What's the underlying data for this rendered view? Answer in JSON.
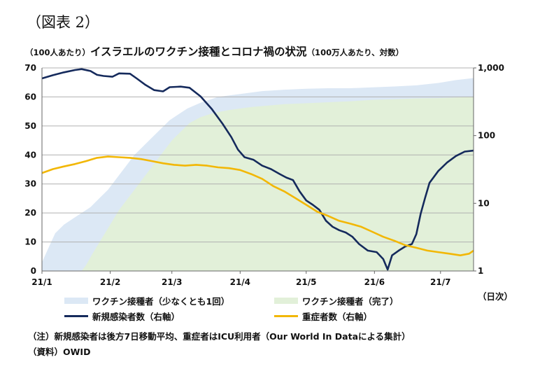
{
  "figure_label": "（図表 2）",
  "title": {
    "left_unit": "（100人あたり）",
    "main": "イスラエルのワクチン接種とコロナ禍の状況",
    "right_unit": "（100万人あたり、対数）"
  },
  "x_unit_label": "（日次）",
  "notes": [
    "（注）新規感染者は後方7日移動平均、重症者はICU利用者（Our World In Dataによる集計）",
    "（資料）OWID"
  ],
  "colors": {
    "vaccinated_once": "#dce8f5",
    "vaccinated_full": "#e2f0d9",
    "new_cases": "#152a5c",
    "severe": "#f2b705",
    "grid": "#b0b0b0"
  },
  "chart_data": {
    "type": "area",
    "x_ticks": [
      "21/1",
      "21/2",
      "21/3",
      "21/4",
      "21/5",
      "21/6",
      "21/7"
    ],
    "x_tick_day_index": [
      0,
      31,
      59,
      90,
      120,
      151,
      181
    ],
    "x_range_days": [
      0,
      196
    ],
    "y_left": {
      "ticks": [
        "0",
        "10",
        "20",
        "30",
        "40",
        "50",
        "60",
        "70"
      ],
      "min": 0,
      "max": 70
    },
    "y_right": {
      "ticks": [
        "1",
        "10",
        "100",
        "1,000"
      ],
      "scale": "log",
      "min": 1,
      "max": 1000
    },
    "grid": true,
    "series": [
      {
        "name": "ワクチン接種者（少なくとも1回）",
        "axis": "left",
        "points": [
          [
            0,
            3
          ],
          [
            3,
            8
          ],
          [
            6,
            13
          ],
          [
            10,
            16
          ],
          [
            14,
            18
          ],
          [
            18,
            20
          ],
          [
            22,
            22
          ],
          [
            26,
            25
          ],
          [
            30,
            28
          ],
          [
            34,
            32
          ],
          [
            38,
            36
          ],
          [
            42,
            40
          ],
          [
            46,
            43
          ],
          [
            50,
            46
          ],
          [
            54,
            49
          ],
          [
            58,
            52
          ],
          [
            62,
            54
          ],
          [
            66,
            56
          ],
          [
            72,
            58
          ],
          [
            80,
            60
          ],
          [
            90,
            61
          ],
          [
            100,
            62
          ],
          [
            110,
            62.5
          ],
          [
            120,
            62.8
          ],
          [
            130,
            63
          ],
          [
            140,
            63
          ],
          [
            150,
            63.3
          ],
          [
            160,
            63.6
          ],
          [
            170,
            64
          ],
          [
            180,
            64.8
          ],
          [
            188,
            65.8
          ],
          [
            196,
            66.5
          ]
        ]
      },
      {
        "name": "ワクチン接種者（完了）",
        "axis": "left",
        "points": [
          [
            0,
            0
          ],
          [
            18,
            0
          ],
          [
            20,
            2
          ],
          [
            23,
            6
          ],
          [
            27,
            11
          ],
          [
            31,
            16
          ],
          [
            35,
            21
          ],
          [
            39,
            25
          ],
          [
            43,
            29
          ],
          [
            47,
            33
          ],
          [
            51,
            37
          ],
          [
            55,
            41
          ],
          [
            59,
            45
          ],
          [
            63,
            48
          ],
          [
            67,
            51
          ],
          [
            72,
            53
          ],
          [
            78,
            54.5
          ],
          [
            85,
            55.5
          ],
          [
            95,
            56.5
          ],
          [
            110,
            57.5
          ],
          [
            125,
            58
          ],
          [
            140,
            58.5
          ],
          [
            150,
            59
          ],
          [
            160,
            59.2
          ],
          [
            170,
            59.5
          ],
          [
            180,
            59.6
          ],
          [
            196,
            60
          ]
        ]
      },
      {
        "name": "新規感染者数（右軸）",
        "axis": "right",
        "points": [
          [
            0,
            700
          ],
          [
            5,
            780
          ],
          [
            10,
            860
          ],
          [
            15,
            930
          ],
          [
            18,
            960
          ],
          [
            22,
            900
          ],
          [
            25,
            790
          ],
          [
            28,
            760
          ],
          [
            32,
            740
          ],
          [
            35,
            830
          ],
          [
            40,
            820
          ],
          [
            43,
            700
          ],
          [
            47,
            560
          ],
          [
            51,
            470
          ],
          [
            55,
            450
          ],
          [
            58,
            520
          ],
          [
            63,
            530
          ],
          [
            67,
            510
          ],
          [
            72,
            380
          ],
          [
            77,
            250
          ],
          [
            82,
            150
          ],
          [
            86,
            95
          ],
          [
            89,
            62
          ],
          [
            92,
            48
          ],
          [
            96,
            44
          ],
          [
            100,
            36
          ],
          [
            104,
            32
          ],
          [
            108,
            27
          ],
          [
            111,
            24
          ],
          [
            114,
            22
          ],
          [
            117,
            15
          ],
          [
            120,
            11
          ],
          [
            123,
            9.5
          ],
          [
            126,
            8
          ],
          [
            129,
            5.5
          ],
          [
            132,
            4.5
          ],
          [
            135,
            4
          ],
          [
            138,
            3.7
          ],
          [
            141,
            3.2
          ],
          [
            144,
            2.5
          ],
          [
            148,
            2.0
          ],
          [
            152,
            1.9
          ],
          [
            155,
            1.5
          ],
          [
            157,
            1.05
          ],
          [
            159,
            1.7
          ],
          [
            162,
            2.0
          ],
          [
            165,
            2.3
          ],
          [
            168,
            2.5
          ],
          [
            170,
            3.5
          ],
          [
            172,
            7
          ],
          [
            174,
            12
          ],
          [
            176,
            20
          ],
          [
            180,
            30
          ],
          [
            184,
            40
          ],
          [
            188,
            50
          ],
          [
            192,
            58
          ],
          [
            196,
            60
          ]
        ]
      },
      {
        "name": "重症者数（右軸）",
        "axis": "right",
        "points": [
          [
            0,
            28
          ],
          [
            5,
            32
          ],
          [
            10,
            35
          ],
          [
            15,
            38
          ],
          [
            20,
            42
          ],
          [
            25,
            47
          ],
          [
            30,
            49
          ],
          [
            35,
            48
          ],
          [
            40,
            47
          ],
          [
            45,
            45
          ],
          [
            50,
            42
          ],
          [
            55,
            39
          ],
          [
            60,
            37
          ],
          [
            65,
            36
          ],
          [
            70,
            37
          ],
          [
            75,
            36
          ],
          [
            80,
            34
          ],
          [
            85,
            33
          ],
          [
            90,
            31
          ],
          [
            95,
            27
          ],
          [
            100,
            23
          ],
          [
            105,
            18
          ],
          [
            110,
            15
          ],
          [
            115,
            12
          ],
          [
            120,
            9.5
          ],
          [
            125,
            7.5
          ],
          [
            130,
            6.5
          ],
          [
            135,
            5.5
          ],
          [
            140,
            5
          ],
          [
            145,
            4.5
          ],
          [
            150,
            3.8
          ],
          [
            155,
            3.2
          ],
          [
            160,
            2.8
          ],
          [
            165,
            2.4
          ],
          [
            170,
            2.2
          ],
          [
            175,
            2.0
          ],
          [
            180,
            1.9
          ],
          [
            185,
            1.8
          ],
          [
            190,
            1.7
          ],
          [
            194,
            1.8
          ],
          [
            196,
            2.0
          ]
        ]
      }
    ]
  }
}
